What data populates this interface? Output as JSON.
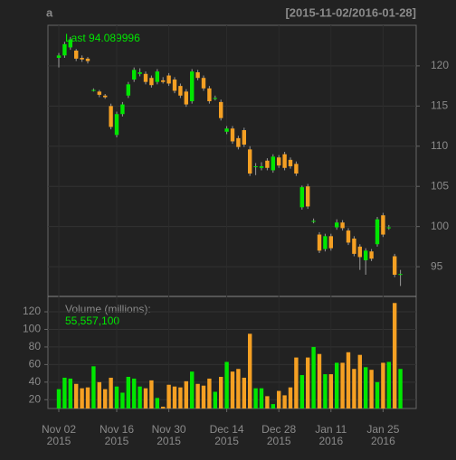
{
  "chart_data": {
    "type": "candlestick",
    "title": "a",
    "date_range": "[2015-11-02/2016-01-28]",
    "last_label": "Last 94.089996",
    "volume_title": "Volume (millions):",
    "volume_label": "55,557,100",
    "up_color": "#00e600",
    "down_color": "#f5a023",
    "open": [
      121.0,
      121.3,
      122.3,
      121.9,
      121.0,
      120.9,
      117.0,
      116.8,
      116.3,
      115.0,
      111.4,
      114.0,
      116.3,
      118.3,
      119.0,
      119.0,
      118.5,
      118.0,
      118.2,
      118.8,
      118.3,
      117.5,
      116.8,
      115.6,
      119.2,
      118.5,
      117.2,
      116.0,
      115.5,
      111.8,
      112.2,
      111.0,
      112.0,
      109.6,
      107.5,
      107.3,
      108.2,
      107.0,
      108.6,
      109.0,
      108.3,
      107.8,
      102.4,
      105.0,
      100.7,
      99.0,
      97.2,
      98.8,
      99.9,
      100.5,
      99.5,
      98.5,
      97.5,
      95.8,
      96.9,
      97.8,
      101.4,
      99.9,
      96.3,
      94.0
    ],
    "high": [
      121.6,
      123.0,
      123.6,
      122.1,
      121.3,
      121.1,
      117.2,
      117.0,
      116.5,
      115.3,
      114.3,
      115.5,
      118.0,
      119.8,
      119.7,
      119.3,
      118.8,
      119.6,
      118.6,
      119.1,
      118.6,
      117.8,
      117.1,
      119.6,
      119.5,
      118.8,
      117.5,
      116.3,
      115.8,
      112.5,
      112.5,
      111.3,
      112.3,
      110.0,
      107.9,
      108.0,
      108.5,
      109.0,
      108.9,
      109.3,
      108.6,
      108.1,
      105.1,
      105.3,
      101.0,
      99.3,
      99.1,
      99.1,
      100.9,
      100.8,
      99.8,
      98.8,
      97.8,
      97.3,
      97.2,
      101.2,
      101.7,
      100.2,
      96.6,
      94.6
    ],
    "low": [
      119.8,
      121.0,
      122.0,
      120.6,
      120.5,
      120.3,
      116.8,
      116.1,
      115.9,
      112.1,
      111.1,
      113.7,
      116.0,
      118.0,
      118.7,
      117.7,
      117.3,
      117.7,
      117.8,
      117.5,
      116.6,
      116.0,
      114.9,
      115.3,
      118.2,
      116.9,
      115.3,
      115.7,
      113.2,
      111.5,
      110.3,
      109.6,
      109.9,
      106.3,
      106.4,
      107.0,
      107.0,
      106.7,
      107.3,
      107.0,
      107.2,
      106.3,
      102.1,
      102.2,
      100.4,
      96.7,
      96.9,
      97.0,
      99.6,
      99.5,
      97.7,
      96.3,
      94.6,
      94.0,
      95.7,
      97.5,
      98.7,
      99.6,
      93.7,
      92.6
    ],
    "close": [
      121.3,
      122.7,
      123.3,
      120.9,
      120.8,
      120.6,
      117.0,
      116.4,
      116.1,
      112.4,
      114.0,
      115.2,
      117.7,
      119.5,
      119.2,
      118.0,
      117.6,
      119.3,
      118.0,
      117.8,
      116.9,
      116.3,
      115.2,
      119.3,
      118.5,
      117.2,
      115.6,
      116.0,
      113.5,
      112.2,
      110.6,
      109.9,
      110.2,
      106.6,
      107.5,
      107.5,
      107.3,
      108.7,
      107.6,
      107.3,
      107.5,
      106.6,
      104.9,
      102.5,
      100.7,
      97.0,
      98.8,
      97.3,
      100.5,
      99.8,
      98.0,
      96.6,
      96.2,
      97.0,
      96.0,
      100.9,
      99.0,
      99.9,
      94.0,
      94.089996
    ],
    "volume": [
      32,
      45,
      44,
      38,
      33,
      34,
      58,
      40,
      32,
      45,
      35,
      28,
      46,
      44,
      35,
      33,
      42,
      22,
      12,
      37,
      35,
      34,
      41,
      52,
      38,
      36,
      44,
      29,
      46,
      63,
      52,
      55,
      45,
      95,
      33,
      33,
      24,
      15,
      30,
      25,
      34,
      68,
      48,
      68,
      80,
      72,
      49,
      49,
      62,
      62,
      74,
      55,
      71,
      57,
      54,
      40,
      62,
      63,
      130,
      55
    ],
    "xticks": [
      {
        "value": 0,
        "label": "Nov 02",
        "year": "2015"
      },
      {
        "value": 10,
        "label": "Nov 16",
        "year": "2015"
      },
      {
        "value": 19,
        "label": "Nov 30",
        "year": "2015"
      },
      {
        "value": 29,
        "label": "Dec 14",
        "year": "2015"
      },
      {
        "value": 38,
        "label": "Dec 28",
        "year": "2015"
      },
      {
        "value": 47,
        "label": "Jan 11",
        "year": "2016"
      },
      {
        "value": 56,
        "label": "Jan 25",
        "year": "2016"
      }
    ],
    "ylim": [
      91.3,
      125.05
    ],
    "yticks": [
      95,
      100,
      105,
      110,
      115,
      120
    ],
    "y2lim": [
      10,
      137.5
    ],
    "y2ticks": [
      20,
      40,
      60,
      80,
      100,
      120
    ],
    "grid": true
  }
}
